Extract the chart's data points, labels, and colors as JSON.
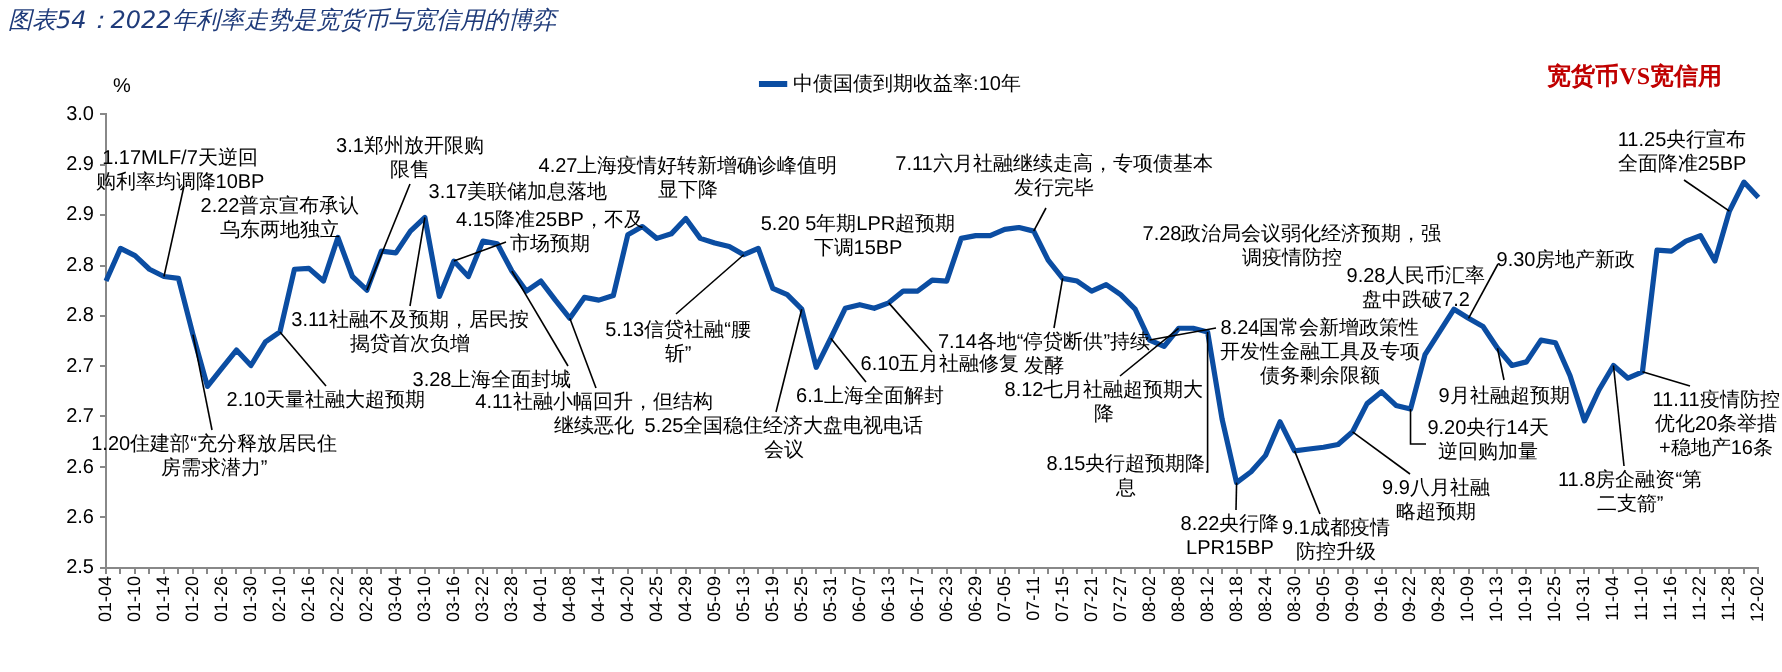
{
  "chart_data": {
    "type": "line",
    "title": "图表54：2022年利率走势是宽货币与宽信用的博弈",
    "subtitle": "宽货币VS宽信用",
    "ylabel": "%",
    "categories": [
      "01-04",
      null,
      "01-10",
      null,
      "01-14",
      null,
      "01-20",
      null,
      "01-26",
      null,
      "01-30",
      null,
      "02-10",
      null,
      "02-16",
      null,
      "02-22",
      null,
      "02-28",
      null,
      "03-04",
      null,
      "03-10",
      null,
      "03-16",
      null,
      "03-22",
      null,
      "03-28",
      null,
      "04-01",
      null,
      "04-08",
      null,
      "04-14",
      null,
      "04-20",
      null,
      "04-25",
      null,
      "04-29",
      null,
      "05-09",
      null,
      "05-13",
      null,
      "05-19",
      null,
      "05-25",
      null,
      "05-31",
      null,
      "06-07",
      null,
      "06-13",
      null,
      "06-17",
      null,
      "06-23",
      null,
      "06-29",
      null,
      "07-05",
      null,
      "07-11",
      null,
      "07-15",
      null,
      "07-21",
      null,
      "07-27",
      null,
      "08-02",
      null,
      "08-08",
      null,
      "08-12",
      null,
      "08-18",
      null,
      "08-24",
      null,
      "08-30",
      null,
      "09-05",
      null,
      "09-09",
      null,
      "09-16",
      null,
      "09-22",
      null,
      "09-28",
      null,
      "10-09",
      null,
      "10-13",
      null,
      "10-19",
      null,
      "10-25",
      null,
      "10-31",
      null,
      "11-04",
      null,
      "11-10",
      null,
      "11-16",
      null,
      "11-22",
      null,
      "11-28",
      null,
      "12-02"
    ],
    "series": [
      {
        "name": "中债国债到期收益率:10年",
        "color": "#0b4da2",
        "values": [
          2.816,
          2.852,
          2.844,
          2.829,
          2.821,
          2.819,
          2.757,
          2.7,
          2.72,
          2.74,
          2.723,
          2.749,
          2.76,
          2.829,
          2.83,
          2.816,
          2.864,
          2.821,
          2.806,
          2.849,
          2.847,
          2.871,
          2.886,
          2.799,
          2.838,
          2.821,
          2.86,
          2.857,
          2.827,
          2.805,
          2.816,
          2.795,
          2.775,
          2.798,
          2.795,
          2.8,
          2.867,
          2.876,
          2.863,
          2.868,
          2.885,
          2.863,
          2.858,
          2.854,
          2.845,
          2.852,
          2.808,
          2.801,
          2.785,
          2.721,
          2.753,
          2.786,
          2.79,
          2.786,
          2.792,
          2.805,
          2.805,
          2.817,
          2.816,
          2.863,
          2.866,
          2.866,
          2.873,
          2.875,
          2.871,
          2.839,
          2.819,
          2.816,
          2.805,
          2.812,
          2.801,
          2.785,
          2.751,
          2.744,
          2.764,
          2.764,
          2.76,
          2.664,
          2.594,
          2.606,
          2.624,
          2.661,
          2.629,
          2.631,
          2.633,
          2.636,
          2.65,
          2.681,
          2.694,
          2.679,
          2.675,
          2.735,
          2.76,
          2.785,
          2.775,
          2.766,
          2.742,
          2.723,
          2.727,
          2.751,
          2.748,
          2.712,
          2.662,
          2.696,
          2.723,
          2.709,
          2.716,
          2.85,
          2.849,
          2.86,
          2.866,
          2.838,
          2.893,
          2.925,
          2.908
        ]
      }
    ],
    "ylim": [
      2.5,
      3.0
    ],
    "yticks": [
      {
        "value": 2.5,
        "label": "2.5"
      },
      {
        "value": 2.556,
        "label": "2.6"
      },
      {
        "value": 2.611,
        "label": "2.6"
      },
      {
        "value": 2.667,
        "label": "2.7"
      },
      {
        "value": 2.722,
        "label": "2.7"
      },
      {
        "value": 2.778,
        "label": "2.8"
      },
      {
        "value": 2.833,
        "label": "2.8"
      },
      {
        "value": 2.889,
        "label": "2.9"
      },
      {
        "value": 2.944,
        "label": "2.9"
      },
      {
        "value": 3.0,
        "label": "3.0"
      }
    ],
    "legend": "top",
    "marker": "none",
    "annotations": [
      {
        "text": "1.17MLF/7天逆回购利率均调降10BP",
        "x": "01-14",
        "y": 2.821
      },
      "2.22普京宣布承认乌东两地独立",
      {
        "text": "3.1郑州放开限购限售",
        "x": "02-28",
        "y": 2.806
      },
      "3.17美联储加息落地",
      {
        "text": "4.15降准25BP，不及市场预期",
        "x": "03-16",
        "y": 2.838
      },
      "4.27上海疫情好转新增确诊峰值明显下降",
      {
        "text": "3.11社融不及预期，居民按揭贷首次负增",
        "x": "03-10",
        "y": 2.886
      },
      {
        "text": "2.10天量社融大超预期",
        "x": "02-10",
        "y": 2.76
      },
      {
        "text": "3.28上海全面封城",
        "x": "03-28",
        "y": 2.827
      },
      {
        "text": "1.20住建部“充分释放居民住房需求潜力”",
        "x": "01-20",
        "y": 2.757
      },
      {
        "text": "4.11社融小幅回升，但结构继续恶化",
        "x": "04-08",
        "y": 2.775
      },
      {
        "text": "5.13信贷社融“腰斩”",
        "x": "05-13",
        "y": 2.845
      },
      {
        "text": "5.25全国稳住经济大盘电视电话会议",
        "x": "05-25",
        "y": 2.785
      },
      "5.20 5年期LPR超预期下调15BP",
      {
        "text": "6.1上海全面解封",
        "x": "05-31",
        "y": 2.753
      },
      {
        "text": "6.10五月社融修复",
        "x": "06-13",
        "y": 2.792
      },
      {
        "text": "7.11六月社融继续走高，专项债基本发行完毕",
        "x": "07-11",
        "y": 2.871
      },
      {
        "text": "7.14各地“停贷断供”持续发酵",
        "x": "07-15",
        "y": 2.819
      },
      "7.28政治局会议弱化经济预期，强调疫情防控",
      {
        "text": "8.12七月社融超预期大降",
        "x": "08-08",
        "y": 2.764
      },
      {
        "text": "8.15央行超预期降息",
        "x": "08-12",
        "y": 2.76
      },
      {
        "text": "8.24国常会新增政策性开发性金融工具及专项债务剩余限额",
        "x": "08-02",
        "y": 2.751
      },
      {
        "text": "8.22央行降LPR15BP",
        "x": "08-18",
        "y": 2.594
      },
      {
        "text": "9.1成都疫情防控升级",
        "x": "08-30",
        "y": 2.629
      },
      {
        "text": "9.9八月社融略超预期",
        "x": "09-09",
        "y": 2.65
      },
      {
        "text": "9.20央行14天逆回购加量",
        "x": "09-22",
        "y": 2.675
      },
      "9.28人民币汇率盘中跌破7.2",
      {
        "text": "9.30房地产新政",
        "x": "10-09",
        "y": 2.775
      },
      {
        "text": "9月社融超预期",
        "x": "10-13",
        "y": 2.742
      },
      {
        "text": "11.8房企融资“第二支箭”",
        "x": "11-04",
        "y": 2.723
      },
      {
        "text": "11.11疫情防控优化20条举措+稳地产16条",
        "x": "11-10",
        "y": 2.716
      },
      {
        "text": "11.25央行宣布全面降准25BP",
        "x": "11-28",
        "y": 2.893
      }
    ]
  }
}
